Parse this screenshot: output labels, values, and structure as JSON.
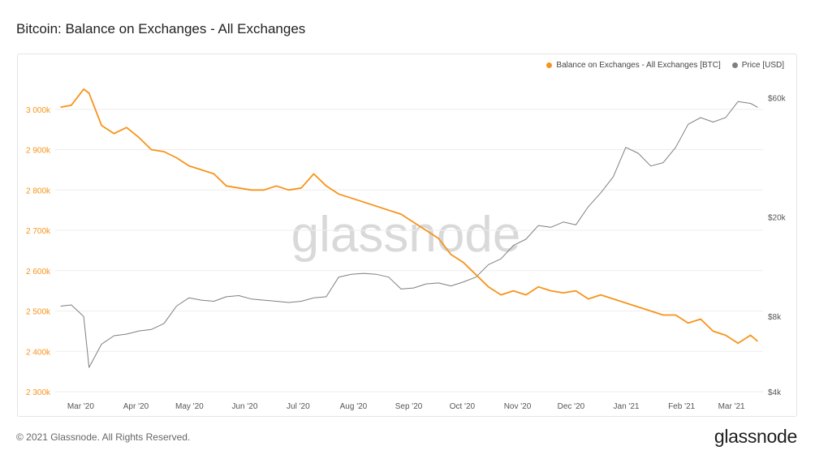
{
  "title": "Bitcoin: Balance on Exchanges - All Exchanges",
  "footer": "© 2021 Glassnode. All Rights Reserved.",
  "brand": "glassnode",
  "watermark": "glassnode",
  "colors": {
    "balance": "#f7931a",
    "price": "#7f7f7f",
    "grid": "#eeeeee",
    "watermark": "#d9d9d9"
  },
  "chart_data": {
    "type": "line",
    "title": "Bitcoin: Balance on Exchanges - All Exchanges",
    "legend_position": "top-right",
    "grid": true,
    "x_ticks": [
      "Mar '20",
      "Apr '20",
      "May '20",
      "Jun '20",
      "Jul '20",
      "Aug '20",
      "Sep '20",
      "Oct '20",
      "Nov '20",
      "Dec '20",
      "Jan '21",
      "Feb '21",
      "Mar '21"
    ],
    "x": [
      "2020-02-26",
      "2020-03-03",
      "2020-03-10",
      "2020-03-13",
      "2020-03-20",
      "2020-03-27",
      "2020-04-03",
      "2020-04-10",
      "2020-04-17",
      "2020-04-24",
      "2020-05-01",
      "2020-05-08",
      "2020-05-15",
      "2020-05-22",
      "2020-05-29",
      "2020-06-05",
      "2020-06-12",
      "2020-06-19",
      "2020-06-26",
      "2020-07-03",
      "2020-07-10",
      "2020-07-17",
      "2020-07-24",
      "2020-07-31",
      "2020-08-07",
      "2020-08-14",
      "2020-08-21",
      "2020-08-28",
      "2020-09-04",
      "2020-09-11",
      "2020-09-18",
      "2020-09-25",
      "2020-10-02",
      "2020-10-09",
      "2020-10-16",
      "2020-10-23",
      "2020-10-30",
      "2020-11-06",
      "2020-11-13",
      "2020-11-20",
      "2020-11-27",
      "2020-12-04",
      "2020-12-11",
      "2020-12-18",
      "2020-12-25",
      "2021-01-01",
      "2021-01-08",
      "2021-01-15",
      "2021-01-22",
      "2021-01-29",
      "2021-02-05",
      "2021-02-12",
      "2021-02-19",
      "2021-02-26",
      "2021-03-05",
      "2021-03-12",
      "2021-03-19",
      "2021-03-23"
    ],
    "y_left": {
      "label": "",
      "ticks": [
        "3 000k",
        "2 900k",
        "2 800k",
        "2 700k",
        "2 600k",
        "2 500k",
        "2 400k",
        "2 300k"
      ],
      "range": [
        2300000,
        3070000
      ]
    },
    "y_right": {
      "label": "",
      "scale": "log",
      "ticks": [
        "$60k",
        "$20k",
        "$8k",
        "$4k"
      ],
      "range": [
        4000,
        70000
      ]
    },
    "series": [
      {
        "name": "Balance on Exchanges - All Exchanges [BTC]",
        "axis": "left",
        "values": [
          3005000,
          3010000,
          3050000,
          3040000,
          2960000,
          2940000,
          2955000,
          2930000,
          2900000,
          2895000,
          2880000,
          2860000,
          2850000,
          2840000,
          2810000,
          2805000,
          2800000,
          2800000,
          2810000,
          2800000,
          2805000,
          2840000,
          2810000,
          2790000,
          2780000,
          2770000,
          2760000,
          2750000,
          2740000,
          2720000,
          2700000,
          2680000,
          2640000,
          2620000,
          2590000,
          2560000,
          2540000,
          2550000,
          2540000,
          2560000,
          2550000,
          2545000,
          2550000,
          2530000,
          2540000,
          2530000,
          2520000,
          2510000,
          2500000,
          2490000,
          2490000,
          2470000,
          2480000,
          2450000,
          2440000,
          2420000,
          2440000,
          2425000
        ]
      },
      {
        "name": "Price [USD]",
        "axis": "right",
        "values": [
          8800,
          8900,
          8000,
          5000,
          6200,
          6700,
          6800,
          7000,
          7100,
          7500,
          8800,
          9500,
          9300,
          9200,
          9600,
          9700,
          9400,
          9300,
          9200,
          9100,
          9200,
          9500,
          9600,
          11500,
          11800,
          11900,
          11800,
          11500,
          10300,
          10400,
          10800,
          10900,
          10600,
          11000,
          11500,
          12900,
          13600,
          15400,
          16300,
          18500,
          18200,
          19100,
          18600,
          22000,
          25000,
          29000,
          38000,
          36000,
          32000,
          33000,
          38000,
          47000,
          50000,
          48000,
          50000,
          58000,
          57000,
          55000
        ]
      }
    ]
  }
}
